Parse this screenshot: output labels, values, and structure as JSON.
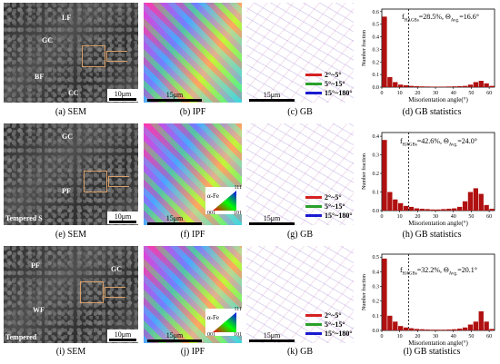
{
  "rows": [
    {
      "sem_caption": "(a) SEM",
      "ipf_caption": "(b) IPF",
      "gb_caption": "(c) GB",
      "stat_caption": "(d) GB statistics",
      "sem_scale": "10μm",
      "ipf_scale": "15μm",
      "gb_scale": "15μm",
      "sem_labels": [
        "LF",
        "GC",
        "BF",
        "CC"
      ],
      "sem_corner": "",
      "has_ipf_key": false,
      "stat_text": "f",
      "stat_sub": "HAGBs",
      "stat_rest": "=28.5%, Θ",
      "stat_sub2": "Avg.",
      "stat_end": "=16.6°",
      "legend": [
        "2°~5°",
        "5°~15°",
        "15°~180°"
      ]
    },
    {
      "sem_caption": "(e) SEM",
      "ipf_caption": "(f) IPF",
      "gb_caption": "(g) GB",
      "stat_caption": "(h) GB statistics",
      "sem_scale": "10μm",
      "ipf_scale": "15μm",
      "gb_scale": "15μm",
      "sem_labels": [
        "GC",
        "PF"
      ],
      "sem_corner": "Tempered S",
      "has_ipf_key": true,
      "stat_text": "f",
      "stat_sub": "HAGBs",
      "stat_rest": "=42.6%, Θ",
      "stat_sub2": "Avg.",
      "stat_end": "=24.0°",
      "legend": [
        "2°~5°",
        "5°~15°",
        "15°~180°"
      ]
    },
    {
      "sem_caption": "(i) SEM",
      "ipf_caption": "(j) IPF",
      "gb_caption": "(k) GB",
      "stat_caption": "(l) GB statistics",
      "sem_scale": "10μm",
      "ipf_scale": "15μm",
      "gb_scale": "15μm",
      "sem_labels": [
        "PF",
        "GC",
        "WF"
      ],
      "sem_corner": "Tempered",
      "has_ipf_key": true,
      "stat_text": "f",
      "stat_sub": "HAGBs",
      "stat_rest": "=32.2%, Θ",
      "stat_sub2": "Avg.",
      "stat_end": "=20.1°",
      "legend": [
        "2°~5°",
        "5°~15°",
        "15°~180°"
      ]
    }
  ],
  "ipf_key": {
    "title": "α-Fe",
    "c111": "111",
    "c001": "001",
    "c101": "101"
  },
  "colors": {
    "low": "#d42020",
    "mid": "#2aa02a",
    "high": "#1a1ad0",
    "bar": "#b01010",
    "frame": "#d9a06a"
  },
  "chart_data": [
    {
      "type": "bar",
      "xlabel": "Misorientation angle(°)",
      "ylabel": "Number fraction",
      "xticks": [
        0,
        10,
        20,
        30,
        40,
        50,
        60
      ],
      "yticks": [
        0.0,
        0.1,
        0.2,
        0.3,
        0.4,
        0.5,
        0.6
      ],
      "ylim": [
        0,
        0.62
      ],
      "xlim": [
        0,
        63
      ],
      "bin_width": 3,
      "x": [
        1.5,
        4.5,
        7.5,
        10.5,
        13.5,
        16.5,
        19.5,
        22.5,
        25.5,
        28.5,
        31.5,
        34.5,
        37.5,
        40.5,
        43.5,
        46.5,
        49.5,
        52.5,
        55.5,
        58.5,
        61.5
      ],
      "values": [
        0.56,
        0.08,
        0.04,
        0.02,
        0.015,
        0.01,
        0.008,
        0.006,
        0.005,
        0.004,
        0.004,
        0.004,
        0.005,
        0.006,
        0.008,
        0.01,
        0.02,
        0.04,
        0.05,
        0.03,
        0.01
      ],
      "threshold": 15
    },
    {
      "type": "bar",
      "xlabel": "Misorientation angle(°)",
      "ylabel": "Number fraction",
      "xticks": [
        0,
        10,
        20,
        30,
        40,
        50,
        60
      ],
      "yticks": [
        0.0,
        0.1,
        0.2,
        0.3,
        0.4
      ],
      "ylim": [
        0,
        0.42
      ],
      "xlim": [
        0,
        63
      ],
      "bin_width": 3,
      "x": [
        1.5,
        4.5,
        7.5,
        10.5,
        13.5,
        16.5,
        19.5,
        22.5,
        25.5,
        28.5,
        31.5,
        34.5,
        37.5,
        40.5,
        43.5,
        46.5,
        49.5,
        52.5,
        55.5,
        58.5,
        61.5
      ],
      "values": [
        0.38,
        0.1,
        0.06,
        0.04,
        0.025,
        0.02,
        0.012,
        0.01,
        0.008,
        0.006,
        0.006,
        0.008,
        0.01,
        0.012,
        0.02,
        0.05,
        0.1,
        0.12,
        0.09,
        0.03,
        0.01
      ],
      "threshold": 15
    },
    {
      "type": "bar",
      "xlabel": "Misorientation angle(°)",
      "ylabel": "Number fraction",
      "xticks": [
        0,
        10,
        20,
        30,
        40,
        50,
        60
      ],
      "yticks": [
        0.0,
        0.1,
        0.2,
        0.3,
        0.4,
        0.5
      ],
      "ylim": [
        0,
        0.52
      ],
      "xlim": [
        0,
        63
      ],
      "bin_width": 3,
      "x": [
        1.5,
        4.5,
        7.5,
        10.5,
        13.5,
        16.5,
        19.5,
        22.5,
        25.5,
        28.5,
        31.5,
        34.5,
        37.5,
        40.5,
        43.5,
        46.5,
        49.5,
        52.5,
        55.5,
        58.5,
        61.5
      ],
      "values": [
        0.49,
        0.1,
        0.06,
        0.03,
        0.02,
        0.015,
        0.01,
        0.008,
        0.006,
        0.005,
        0.005,
        0.005,
        0.006,
        0.008,
        0.012,
        0.02,
        0.04,
        0.06,
        0.13,
        0.06,
        0.01
      ],
      "threshold": 15
    }
  ]
}
